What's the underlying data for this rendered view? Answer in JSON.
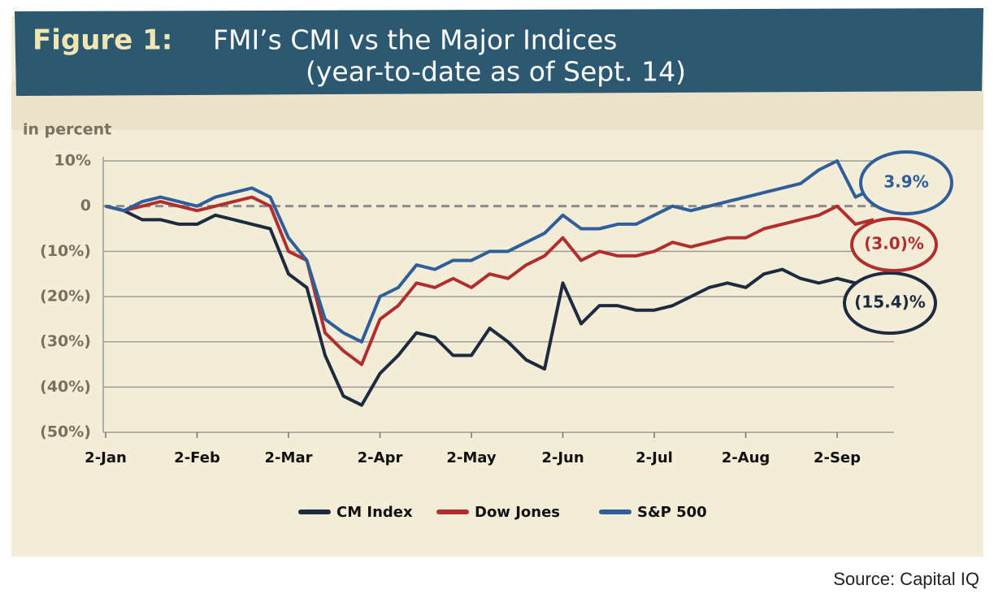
{
  "chart_data": {
    "type": "line",
    "title_prefix": "Figure 1:",
    "title": "FMI’s CMI vs the Major Indices",
    "subtitle": "(year-to-date as of Sept. 14)",
    "y_label": "in percent",
    "source": "Source: Capital IQ",
    "categories": [
      "2-Jan",
      null,
      null,
      null,
      null,
      "2-Feb",
      null,
      null,
      null,
      null,
      "2-Mar",
      null,
      null,
      null,
      null,
      "2-Apr",
      null,
      null,
      null,
      null,
      "2-May",
      null,
      null,
      null,
      null,
      "2-Jun",
      null,
      null,
      null,
      null,
      "2-Jul",
      null,
      null,
      null,
      null,
      "2-Aug",
      null,
      null,
      null,
      null,
      "2-Sep",
      null,
      null
    ],
    "series": [
      {
        "name": "CM Index",
        "color": "#1c2b3f",
        "values": [
          0,
          -1,
          -3,
          -3,
          -4,
          -4,
          -2,
          -3,
          -4,
          -5,
          -15,
          -18,
          -33,
          -42,
          -44,
          -37,
          -33,
          -28,
          -29,
          -33,
          -33,
          -27,
          -30,
          -34,
          -36,
          -17,
          -26,
          -22,
          -22,
          -23,
          -23,
          -22,
          -20,
          -18,
          -17,
          -18,
          -15,
          -14,
          -16,
          -17,
          -16,
          -17,
          -15.4
        ],
        "value_labels": [
          null,
          null,
          null,
          null,
          null,
          null,
          null,
          null,
          null,
          null,
          null,
          null,
          null,
          null,
          null,
          null,
          null,
          null,
          null,
          null,
          null,
          null,
          null,
          null,
          null,
          null,
          null,
          null,
          null,
          null,
          null,
          null,
          null,
          null,
          null,
          null,
          null,
          null,
          null,
          null,
          null,
          null,
          "(15.4)%"
        ]
      },
      {
        "name": "Dow Jones",
        "color": "#b22e2e",
        "values": [
          0,
          -1,
          0,
          1,
          0,
          -1,
          0,
          1,
          2,
          0,
          -10,
          -12,
          -28,
          -32,
          -35,
          -25,
          -22,
          -17,
          -18,
          -16,
          -18,
          -15,
          -16,
          -13,
          -11,
          -7,
          -12,
          -10,
          -11,
          -11,
          -10,
          -8,
          -9,
          -8,
          -7,
          -7,
          -5,
          -4,
          -3,
          -2,
          0,
          -4,
          -3.0
        ],
        "value_labels": [
          null,
          null,
          null,
          null,
          null,
          null,
          null,
          null,
          null,
          null,
          null,
          null,
          null,
          null,
          null,
          null,
          null,
          null,
          null,
          null,
          null,
          null,
          null,
          null,
          null,
          null,
          null,
          null,
          null,
          null,
          null,
          null,
          null,
          null,
          null,
          null,
          null,
          null,
          null,
          null,
          null,
          null,
          "(3.0)%"
        ]
      },
      {
        "name": "S&P 500",
        "color": "#2e5f9b",
        "values": [
          0,
          -1,
          1,
          2,
          1,
          0,
          2,
          3,
          4,
          2,
          -7,
          -12,
          -25,
          -28,
          -30,
          -20,
          -18,
          -13,
          -14,
          -12,
          -12,
          -10,
          -10,
          -8,
          -6,
          -2,
          -5,
          -5,
          -4,
          -4,
          -2,
          0,
          -1,
          0,
          1,
          2,
          3,
          4,
          5,
          8,
          10,
          2,
          3.9
        ],
        "value_labels": [
          null,
          null,
          null,
          null,
          null,
          null,
          null,
          null,
          null,
          null,
          null,
          null,
          null,
          null,
          null,
          null,
          null,
          null,
          null,
          null,
          null,
          null,
          null,
          null,
          null,
          null,
          null,
          null,
          null,
          null,
          null,
          null,
          null,
          null,
          null,
          null,
          null,
          null,
          null,
          null,
          null,
          null,
          "3.9%"
        ]
      }
    ],
    "ylim": [
      -50,
      10
    ],
    "yticks": [
      {
        "value": 10,
        "label": "10%"
      },
      0,
      {
        "value": -10,
        "label": "(10%)"
      },
      {
        "value": -20,
        "label": "(20%)"
      },
      {
        "value": -30,
        "label": "(30%)"
      },
      {
        "value": -40,
        "label": "(40%)"
      },
      {
        "value": -50,
        "label": "(50%)"
      }
    ],
    "grid": true,
    "legend": "bottom"
  }
}
